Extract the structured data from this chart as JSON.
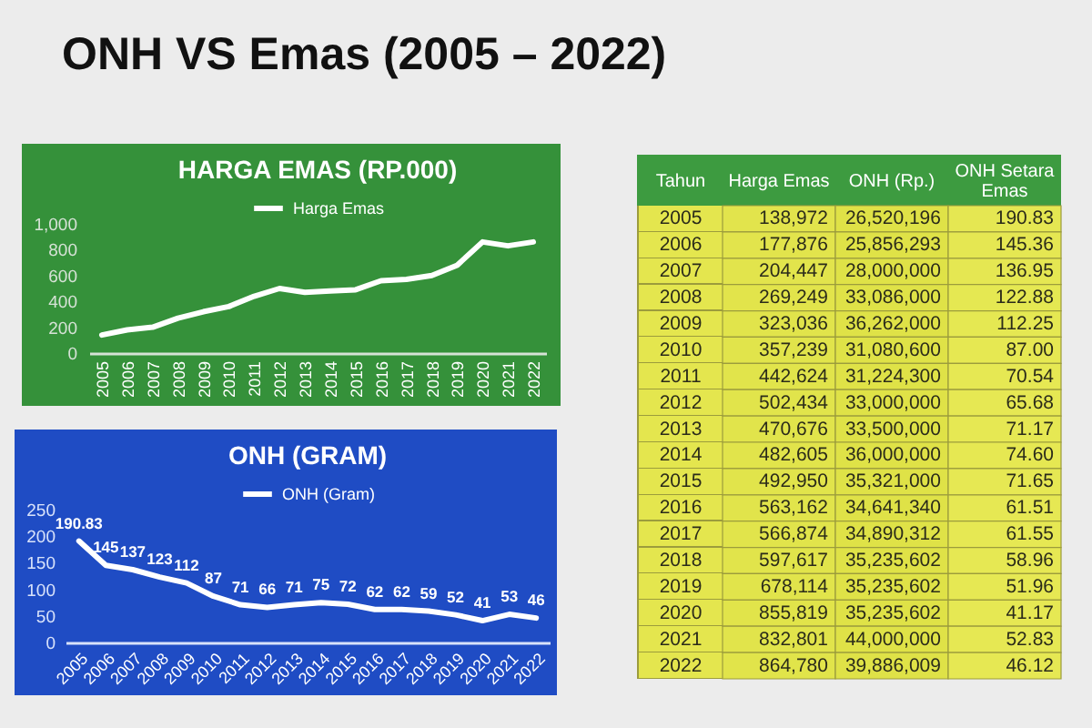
{
  "chart_data": [
    {
      "type": "other",
      "title": "ONH VS Emas (2005 – 2022)"
    },
    {
      "type": "line",
      "title": "HARGA EMAS (RP.000)",
      "categories": [
        "2005",
        "2006",
        "2007",
        "2008",
        "2009",
        "2010",
        "2011",
        "2012",
        "2013",
        "2014",
        "2015",
        "2016",
        "2017",
        "2018",
        "2019",
        "2020",
        "2021",
        "2022"
      ],
      "series": [
        {
          "name": "Harga Emas",
          "color": "#ffffff",
          "values": [
            140,
            180,
            200,
            270,
            320,
            360,
            440,
            500,
            470,
            480,
            490,
            560,
            570,
            600,
            680,
            860,
            830,
            860
          ]
        }
      ],
      "ylim": [
        0,
        1000
      ],
      "yticks": [
        0,
        200,
        400,
        600,
        800,
        {
          "value": 1000,
          "label": "1,000"
        }
      ],
      "legend": "top"
    },
    {
      "type": "heatmap",
      "ylabel": "Tahun",
      "categories": [
        "Harga Emas",
        "ONH (Rp.)",
        "ONH Setara Emas"
      ],
      "y_categories": [
        "2005",
        "2006",
        "2007",
        "2008",
        "2009",
        "2010",
        "2011",
        "2012",
        "2013",
        "2014",
        "2015",
        "2016",
        "2017",
        "2018",
        "2019",
        "2020",
        "2021",
        "2022"
      ],
      "cells": [
        [
          138972,
          26520196,
          190.83
        ],
        [
          177876,
          25856293,
          145.36
        ],
        [
          204447,
          28000000,
          136.95
        ],
        [
          269249,
          33086000,
          122.88
        ],
        [
          323036,
          36262000,
          112.25
        ],
        [
          357239,
          31080600,
          87
        ],
        [
          442624,
          31224300,
          70.54
        ],
        [
          502434,
          33000000,
          65.68
        ],
        [
          470676,
          33500000,
          71.17
        ],
        [
          482605,
          36000000,
          74.6
        ],
        [
          492950,
          35321000,
          71.65
        ],
        [
          563162,
          34641340,
          61.51
        ],
        [
          566874,
          34890312,
          61.55
        ],
        [
          597617,
          35235602,
          58.96
        ],
        [
          678114,
          35235602,
          51.96
        ],
        [
          855819,
          35235602,
          41.17
        ],
        [
          832801,
          44000000,
          52.83
        ],
        [
          864780,
          39886009,
          46.12
        ]
      ],
      "cell_labels": [
        [
          "138,972",
          "26,520,196",
          "190.83"
        ],
        [
          "177,876",
          "25,856,293",
          "145.36"
        ],
        [
          "204,447",
          "28,000,000",
          "136.95"
        ],
        [
          "269,249",
          "33,086,000",
          "122.88"
        ],
        [
          "323,036",
          "36,262,000",
          "112.25"
        ],
        [
          "357,239",
          "31,080,600",
          "87.00"
        ],
        [
          "442,624",
          "31,224,300",
          "70.54"
        ],
        [
          "502,434",
          "33,000,000",
          "65.68"
        ],
        [
          "470,676",
          "33,500,000",
          "71.17"
        ],
        [
          "482,605",
          "36,000,000",
          "74.60"
        ],
        [
          "492,950",
          "35,321,000",
          "71.65"
        ],
        [
          "563,162",
          "34,641,340",
          "61.51"
        ],
        [
          "566,874",
          "34,890,312",
          "61.55"
        ],
        [
          "597,617",
          "35,235,602",
          "58.96"
        ],
        [
          "678,114",
          "35,235,602",
          "51.96"
        ],
        [
          "855,819",
          "35,235,602",
          "41.17"
        ],
        [
          "832,801",
          "44,000,000",
          "52.83"
        ],
        [
          "864,780",
          "39,886,009",
          "46.12"
        ]
      ]
    },
    {
      "type": "line",
      "title": "ONH (GRAM)",
      "categories": [
        "2005",
        "2006",
        "2007",
        "2008",
        "2009",
        "2010",
        "2011",
        "2012",
        "2013",
        "2014",
        "2015",
        "2016",
        "2017",
        "2018",
        "2019",
        "2020",
        "2021",
        "2022"
      ],
      "series": [
        {
          "name": "ONH (Gram)",
          "color": "#ffffff",
          "values": [
            190.83,
            145,
            137,
            123,
            112,
            87,
            71,
            66,
            71,
            75,
            72,
            62,
            62,
            59,
            52,
            41,
            53,
            46
          ]
        }
      ],
      "ylim": [
        0,
        250
      ],
      "yticks": [
        0,
        50,
        100,
        150,
        200,
        250
      ],
      "data_labels": true,
      "legend": "top"
    }
  ]
}
